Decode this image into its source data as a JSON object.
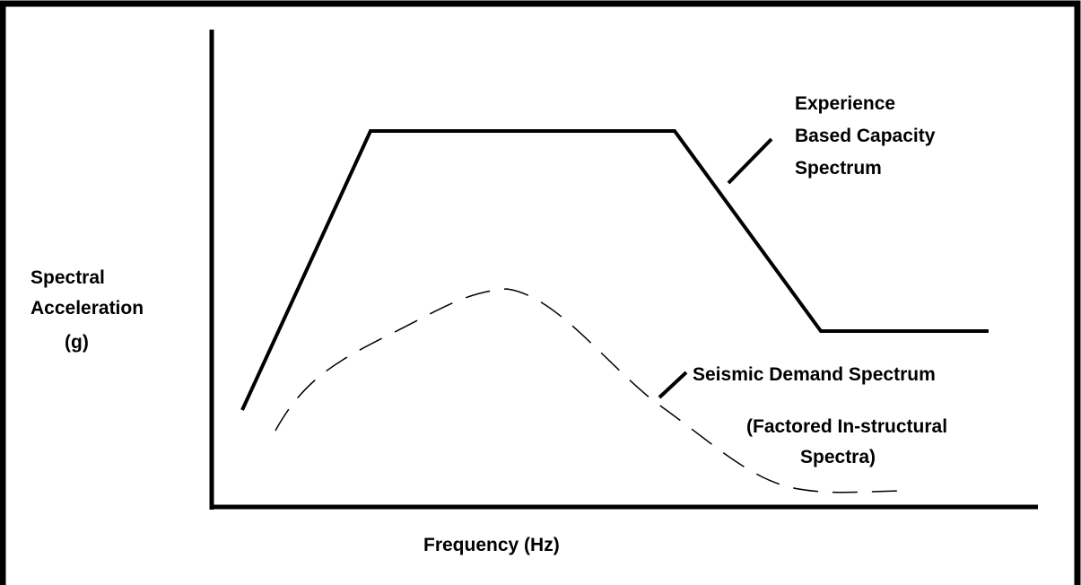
{
  "axes": {
    "y_label": [
      "Spectral",
      "Acceleration",
      "(g)"
    ],
    "x_label": "Frequency (Hz)"
  },
  "labels": {
    "capacity": [
      "Experience",
      "Based Capacity",
      "Spectrum"
    ],
    "demand": "Seismic Demand Spectrum",
    "note": [
      "(Factored In-structural",
      "Spectra)"
    ]
  }
}
